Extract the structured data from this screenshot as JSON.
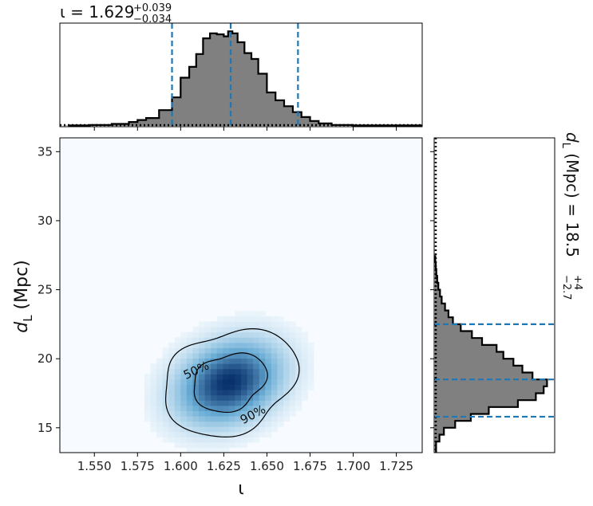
{
  "chart_data": {
    "type": "corner-plot",
    "top_title": {
      "symbol": "ι = 1.629",
      "sup": "+0.039",
      "sub": "−0.034"
    },
    "right_title": {
      "prefix": "d",
      "prefix_sub": "L",
      "text": " (Mpc) = 18.5",
      "sup": "+4",
      "sub": "−2.7"
    },
    "xlabel": "ι",
    "ylabel": {
      "text": "d",
      "sub": "L",
      "tail": " (Mpc)"
    },
    "xlim": [
      1.53,
      1.74
    ],
    "ylim": [
      13.2,
      36.0
    ],
    "xticks": [
      1.55,
      1.575,
      1.6,
      1.625,
      1.65,
      1.675,
      1.7,
      1.725
    ],
    "xtick_labels": [
      "1.550",
      "1.575",
      "1.600",
      "1.625",
      "1.650",
      "1.675",
      "1.700",
      "1.725"
    ],
    "yticks": [
      15,
      20,
      25,
      30,
      35
    ],
    "ytick_labels": [
      "15",
      "20",
      "25",
      "30",
      "35"
    ],
    "iota_quantiles": [
      1.595,
      1.629,
      1.668
    ],
    "dl_quantiles": [
      15.8,
      18.5,
      22.5
    ],
    "iota_hist": {
      "edges": [
        1.535,
        1.5475,
        1.56,
        1.57,
        1.575,
        1.58,
        1.5875,
        1.595,
        1.6,
        1.605,
        1.609,
        1.613,
        1.617,
        1.621,
        1.625,
        1.6275,
        1.63,
        1.633,
        1.637,
        1.641,
        1.645,
        1.65,
        1.655,
        1.66,
        1.665,
        1.67,
        1.675,
        1.68,
        1.6875,
        1.7,
        1.74
      ],
      "density": [
        0.005,
        0.01,
        0.02,
        0.04,
        0.06,
        0.08,
        0.16,
        0.29,
        0.49,
        0.6,
        0.73,
        0.89,
        0.94,
        0.93,
        0.91,
        0.96,
        0.94,
        0.85,
        0.74,
        0.68,
        0.53,
        0.34,
        0.26,
        0.2,
        0.14,
        0.09,
        0.05,
        0.025,
        0.01,
        0.005
      ]
    },
    "dl_hist": {
      "edges": [
        13.2,
        14.0,
        14.5,
        15.0,
        15.5,
        16.0,
        16.5,
        17.0,
        17.5,
        18.0,
        18.5,
        19.0,
        19.5,
        20.0,
        20.5,
        21.0,
        21.5,
        22.0,
        22.5,
        23.0,
        23.5,
        24.0,
        24.5,
        25.0,
        25.5,
        26.0,
        26.5,
        27.0,
        27.5
      ],
      "density": [
        0.01,
        0.04,
        0.08,
        0.18,
        0.32,
        0.48,
        0.74,
        0.9,
        0.97,
        1.0,
        0.87,
        0.78,
        0.7,
        0.61,
        0.55,
        0.42,
        0.33,
        0.23,
        0.16,
        0.12,
        0.09,
        0.06,
        0.045,
        0.03,
        0.02,
        0.012,
        0.007,
        0.003
      ]
    },
    "density_peak": {
      "x": 1.628,
      "y": 18.3,
      "sx": 0.018,
      "sy": 1.8,
      "rho": 0.25
    },
    "contour_labels": [
      "50%",
      "90%"
    ],
    "colors": {
      "hist_fill": "#808080",
      "hist_edge": "#000000",
      "quantile_line": "#1f77b4",
      "cmap_low": "#f7fbff",
      "cmap_high": "#08306b"
    }
  }
}
